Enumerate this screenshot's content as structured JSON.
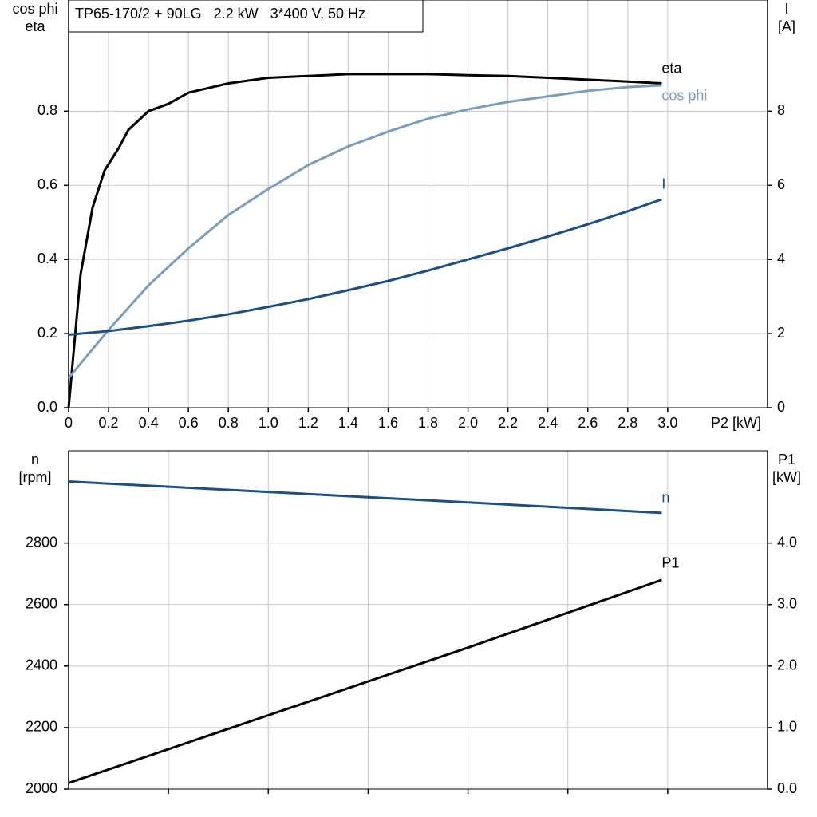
{
  "chart_data": [
    {
      "type": "line",
      "title": "TP65-170/2 + 90LG   2.2 kW   3*400 V, 50 Hz",
      "ylabel": [
        "cos phi",
        "eta"
      ],
      "y2label": [
        "I",
        "[A]"
      ],
      "xlabel": "P2 [kW]",
      "xlim": [
        0,
        3.5
      ],
      "ylim": [
        0,
        1.1
      ],
      "y2lim": [
        0,
        11
      ],
      "xticks": [
        {
          "value": 0,
          "label": "0"
        },
        0.2,
        0.4,
        0.6,
        0.8,
        {
          "value": 1,
          "label": "1.0"
        },
        1.2,
        1.4,
        1.6,
        1.8,
        {
          "value": 2,
          "label": "2.0"
        },
        2.2,
        2.4,
        2.6,
        2.8,
        {
          "value": 3,
          "label": "3.0"
        }
      ],
      "yticks": [
        {
          "value": 0,
          "label": "0.0"
        },
        0.2,
        0.4,
        0.6,
        0.8
      ],
      "y2ticks": [
        0,
        2,
        4,
        6,
        8
      ],
      "grid": true,
      "series": [
        {
          "name": "eta",
          "color": "#000000",
          "x": [
            0,
            0.06,
            0.12,
            0.18,
            0.25,
            0.3,
            0.4,
            0.5,
            0.6,
            0.8,
            1.0,
            1.2,
            1.4,
            1.6,
            1.8,
            2.0,
            2.2,
            2.4,
            2.6,
            2.8,
            2.97
          ],
          "values": [
            0,
            0.36,
            0.54,
            0.64,
            0.7,
            0.75,
            0.8,
            0.82,
            0.85,
            0.875,
            0.89,
            0.895,
            0.9,
            0.9,
            0.9,
            0.897,
            0.895,
            0.89,
            0.885,
            0.88,
            0.875
          ]
        },
        {
          "name": "cos phi",
          "color": "#7b9dbd",
          "x": [
            0,
            0.2,
            0.4,
            0.6,
            0.8,
            1.0,
            1.2,
            1.4,
            1.6,
            1.8,
            2.0,
            2.2,
            2.4,
            2.6,
            2.8,
            2.97
          ],
          "values": [
            0.08,
            0.21,
            0.33,
            0.43,
            0.52,
            0.59,
            0.655,
            0.705,
            0.745,
            0.78,
            0.805,
            0.825,
            0.84,
            0.855,
            0.865,
            0.87
          ]
        },
        {
          "name": "I",
          "color": "#1b4f86",
          "axis": "y2",
          "x": [
            0,
            0.2,
            0.4,
            0.6,
            0.8,
            1.0,
            1.2,
            1.4,
            1.6,
            1.8,
            2.0,
            2.2,
            2.4,
            2.6,
            2.8,
            2.97
          ],
          "values": [
            1.97,
            2.07,
            2.2,
            2.35,
            2.52,
            2.72,
            2.93,
            3.17,
            3.42,
            3.7,
            4.0,
            4.3,
            4.62,
            4.95,
            5.3,
            5.62
          ]
        }
      ]
    },
    {
      "type": "line",
      "ylabel": [
        "n",
        "[rpm]"
      ],
      "y2label": [
        "P1",
        "[kW]"
      ],
      "xlim": [
        0,
        3.5
      ],
      "ylim": [
        2000,
        3100
      ],
      "y2lim": [
        0,
        5.5
      ],
      "xticks": [
        0.5,
        1,
        1.5,
        2,
        2.5,
        3
      ],
      "show_xtick_labels": false,
      "yticks": [
        2000,
        2200,
        2400,
        2600,
        2800
      ],
      "y2ticks": [
        {
          "value": 0,
          "label": "0.0"
        },
        {
          "value": 1,
          "label": "1.0"
        },
        {
          "value": 2,
          "label": "2.0"
        },
        {
          "value": 3,
          "label": "3.0"
        },
        {
          "value": 4,
          "label": "4.0"
        }
      ],
      "grid": true,
      "series": [
        {
          "name": "n",
          "color": "#1b4f86",
          "x": [
            0,
            1.0,
            2.0,
            2.97
          ],
          "values": [
            3000,
            2966,
            2932,
            2898
          ]
        },
        {
          "name": "P1",
          "color": "#000000",
          "axis": "y2",
          "x": [
            0,
            1.0,
            2.0,
            2.97
          ],
          "values": [
            0.1,
            1.2,
            2.3,
            3.4
          ]
        }
      ]
    }
  ]
}
